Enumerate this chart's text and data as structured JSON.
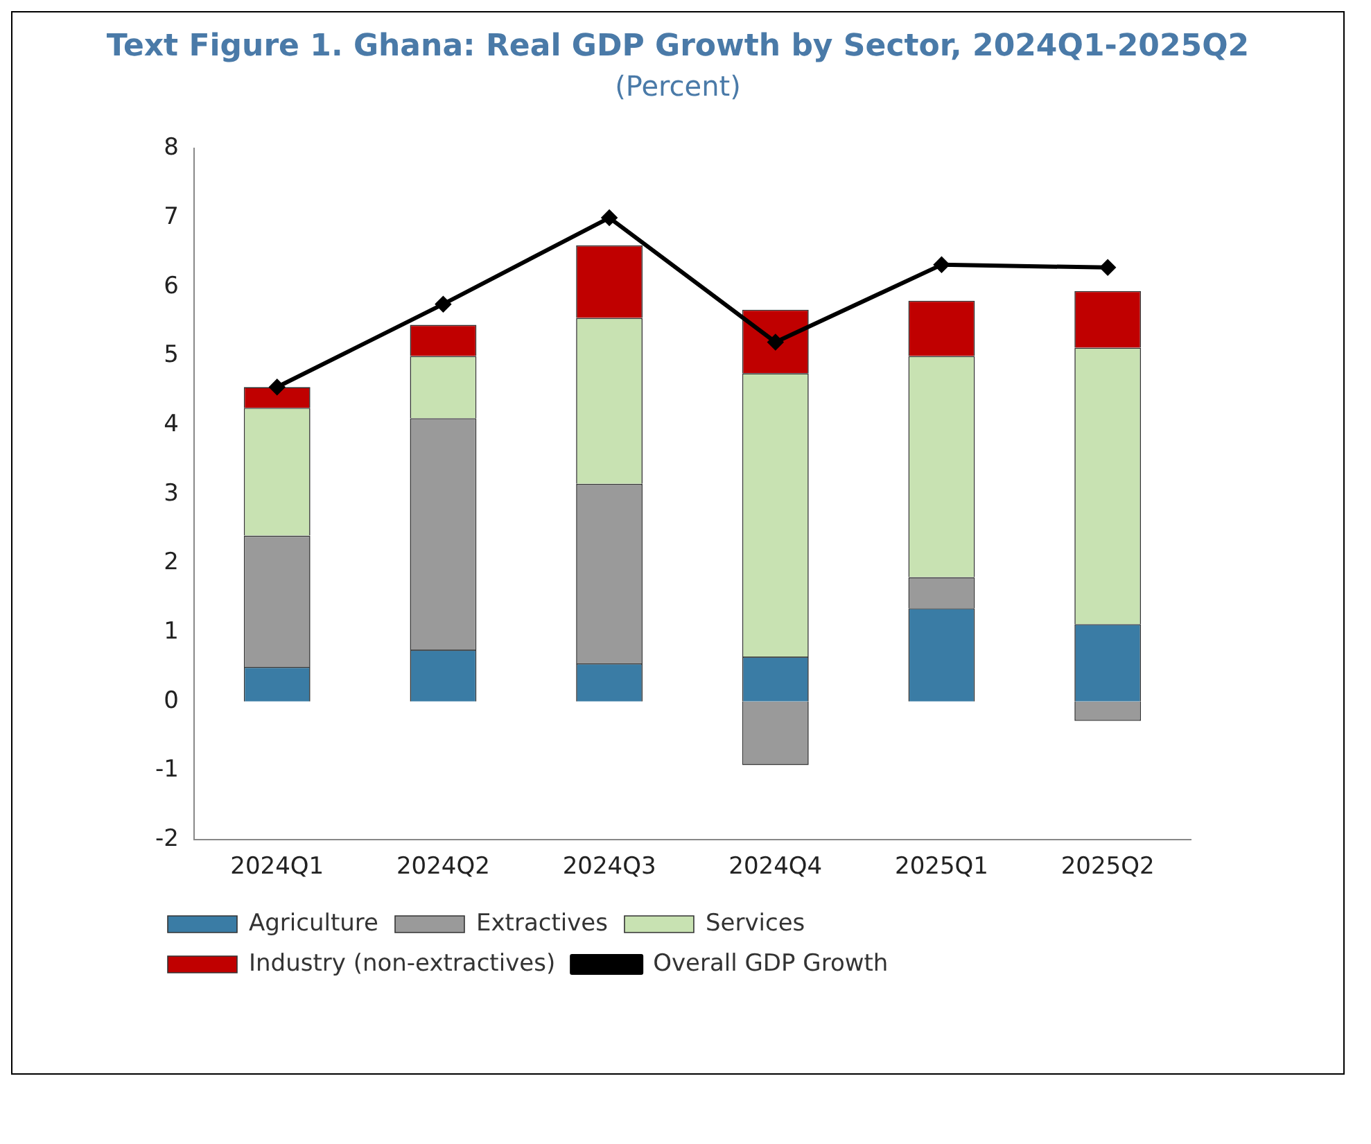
{
  "chart_data": {
    "type": "bar",
    "title": "Text Figure 1. Ghana: Real GDP Growth by Sector, 2024Q1-2025Q2",
    "subtitle": "(Percent)",
    "categories": [
      "2024Q1",
      "2024Q2",
      "2024Q3",
      "2024Q4",
      "2025Q1",
      "2025Q2"
    ],
    "stacked": true,
    "series": [
      {
        "name": "Agriculture",
        "color": "#3a7ca5",
        "values": [
          0.5,
          0.75,
          0.55,
          0.65,
          1.35,
          1.12
        ]
      },
      {
        "name": "Extractives",
        "color": "#9a9a9a",
        "values": [
          1.9,
          3.35,
          2.6,
          -0.92,
          0.45,
          -0.28
        ]
      },
      {
        "name": "Services",
        "color": "#c8e2b2",
        "values": [
          1.85,
          0.9,
          2.4,
          4.1,
          3.2,
          4.0
        ]
      },
      {
        "name": "Industry (non-extractives)",
        "color": "#c00000",
        "values": [
          0.3,
          0.45,
          1.05,
          0.92,
          0.8,
          0.82
        ]
      },
      {
        "name": "Overall GDP Growth",
        "type": "line",
        "color": "#000000",
        "marker": "diamond",
        "values": [
          4.55,
          5.75,
          7.0,
          5.2,
          6.32,
          6.28
        ]
      }
    ],
    "ylim": [
      -2,
      8
    ],
    "yticks": [
      -2,
      -1,
      0,
      1,
      2,
      3,
      4,
      5,
      6,
      7,
      8
    ],
    "grid": false,
    "legend": "bottom"
  }
}
